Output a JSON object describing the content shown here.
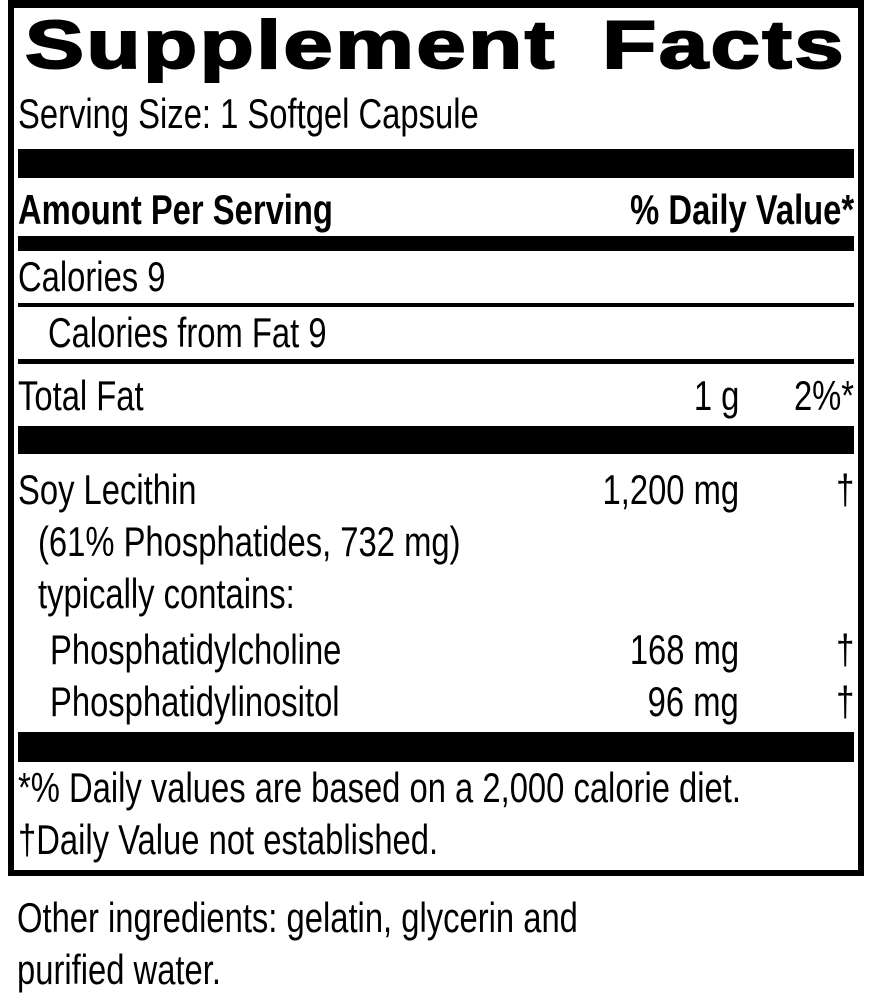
{
  "supplement_facts": {
    "title": "Supplement Facts",
    "serving_size": "Serving Size: 1 Softgel Capsule",
    "columns": {
      "amount_header": "Amount Per Serving",
      "dv_header": "% Daily Value*"
    },
    "rows": {
      "calories": {
        "name": "Calories 9"
      },
      "calories_from_fat": {
        "name": "Calories from Fat 9"
      },
      "total_fat": {
        "name": "Total Fat",
        "amount": "1 g",
        "dv": "2%*"
      },
      "soy_lecithin": {
        "name": "Soy Lecithin",
        "amount": "1,200 mg",
        "dv": "†",
        "detail_1": "(61% Phosphatides, 732 mg)",
        "detail_2": "typically contains:"
      },
      "phosphatidylcholine": {
        "name": "Phosphatidylcholine",
        "amount": "168 mg",
        "dv": "†"
      },
      "phosphatidylinositol": {
        "name": "Phosphatidylinositol",
        "amount": "96 mg",
        "dv": "†"
      }
    },
    "footnotes": {
      "daily_value": "*% Daily values are based on a 2,000 calorie diet.",
      "dagger": "†Daily Value not established."
    },
    "other_ingredients": {
      "line_1": "Other ingredients: gelatin, glycerin and",
      "line_2": "purified water."
    },
    "colors": {
      "ink": "#000000",
      "background": "#ffffff"
    }
  }
}
